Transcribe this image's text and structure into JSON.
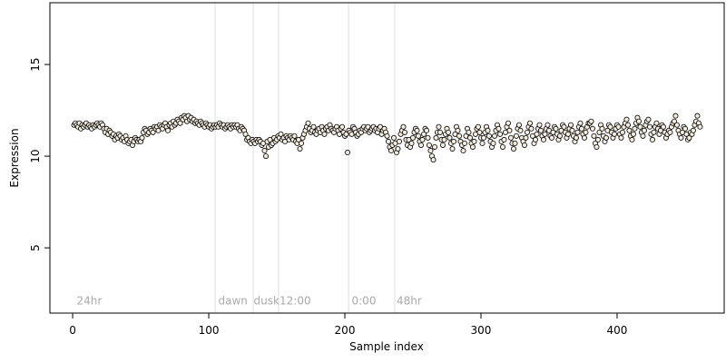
{
  "chart_data": {
    "type": "scatter",
    "xlabel": "Sample index",
    "ylabel": "Expression",
    "xlim": [
      -16.7,
      478.7
    ],
    "ylim": [
      1.44,
      18.37
    ],
    "xticks": [
      0,
      100,
      200,
      300,
      400
    ],
    "yticks": [
      5,
      10,
      15
    ],
    "grid": false,
    "vlines": [
      104.7,
      132.7,
      151.3,
      202.7,
      236.7
    ],
    "vline_color": "#dddddd",
    "annotations": [
      {
        "text": "24hr",
        "x": 3,
        "y": 1.9
      },
      {
        "text": "dawn",
        "x": 107,
        "y": 1.9
      },
      {
        "text": "dusk",
        "x": 133,
        "y": 1.9
      },
      {
        "text": "12:00",
        "x": 152,
        "y": 1.9
      },
      {
        "text": "0:00",
        "x": 205,
        "y": 1.9
      },
      {
        "text": "48hr",
        "x": 238,
        "y": 1.9
      }
    ],
    "series": [
      {
        "color": "#f3ecdf",
        "stroke": "#000000",
        "x": [
          1,
          2,
          3,
          4,
          5,
          6,
          7,
          8,
          9,
          10,
          11,
          12,
          13,
          14,
          15,
          16,
          17,
          18,
          19,
          20,
          21,
          22,
          23,
          24,
          25,
          26,
          27,
          28,
          29,
          30,
          31,
          32,
          33,
          34,
          35,
          36,
          37,
          38,
          39,
          40,
          41,
          42,
          43,
          44,
          45,
          46,
          47,
          48,
          49,
          50,
          51,
          52,
          53,
          54,
          55,
          56,
          57,
          58,
          59,
          60,
          61,
          62,
          63,
          64,
          65,
          66,
          67,
          68,
          69,
          70,
          71,
          72,
          73,
          74,
          75,
          76,
          77,
          78,
          79,
          80,
          81,
          82,
          83,
          84,
          85,
          86,
          87,
          88,
          89,
          90,
          91,
          92,
          93,
          94,
          95,
          96,
          97,
          98,
          99,
          100,
          101,
          102,
          103,
          104,
          105,
          106,
          107,
          108,
          109,
          110,
          111,
          112,
          113,
          114,
          115,
          116,
          117,
          118,
          119,
          120,
          121,
          122,
          123,
          124,
          125,
          126,
          127,
          128,
          129,
          130,
          131,
          132,
          133,
          134,
          135,
          136,
          137,
          138,
          139,
          140,
          141,
          142,
          143,
          144,
          145,
          146,
          147,
          148,
          149,
          150,
          151,
          152,
          153,
          154,
          155,
          156,
          157,
          158,
          159,
          160,
          161,
          162,
          163,
          164,
          165,
          166,
          167,
          168,
          169,
          170,
          171,
          172,
          173,
          174,
          175,
          176,
          177,
          178,
          179,
          180,
          181,
          182,
          183,
          184,
          185,
          186,
          187,
          188,
          189,
          190,
          191,
          192,
          193,
          194,
          195,
          196,
          197,
          198,
          199,
          200,
          201,
          202,
          203,
          204,
          205,
          206,
          207,
          208,
          209,
          210,
          211,
          212,
          213,
          214,
          215,
          216,
          217,
          218,
          219,
          220,
          221,
          222,
          223,
          224,
          225,
          226,
          227,
          228,
          229,
          230,
          231,
          232,
          233,
          234,
          235,
          236,
          237,
          238,
          239,
          240,
          241,
          242,
          243,
          244,
          245,
          246,
          247,
          248,
          249,
          250,
          251,
          252,
          253,
          254,
          255,
          256,
          257,
          258,
          259,
          260,
          261,
          262,
          263,
          264,
          265,
          266,
          267,
          268,
          269,
          270,
          271,
          272,
          273,
          274,
          275,
          276,
          277,
          278,
          279,
          280,
          281,
          282,
          283,
          284,
          285,
          286,
          287,
          288,
          289,
          290,
          291,
          292,
          293,
          294,
          295,
          296,
          297,
          298,
          299,
          300,
          301,
          302,
          303,
          304,
          305,
          306,
          307,
          308,
          309,
          310,
          311,
          312,
          313,
          314,
          315,
          316,
          317,
          318,
          319,
          320,
          321,
          322,
          323,
          324,
          325,
          326,
          327,
          328,
          329,
          330,
          331,
          332,
          333,
          334,
          335,
          336,
          337,
          338,
          339,
          340,
          341,
          342,
          343,
          344,
          345,
          346,
          347,
          348,
          349,
          350,
          351,
          352,
          353,
          354,
          355,
          356,
          357,
          358,
          359,
          360,
          361,
          362,
          363,
          364,
          365,
          366,
          367,
          368,
          369,
          370,
          371,
          372,
          373,
          374,
          375,
          376,
          377,
          378,
          379,
          380,
          381,
          382,
          383,
          384,
          385,
          386,
          387,
          388,
          389,
          390,
          391,
          392,
          393,
          394,
          395,
          396,
          397,
          398,
          399,
          400,
          401,
          402,
          403,
          404,
          405,
          406,
          407,
          408,
          409,
          410,
          411,
          412,
          413,
          414,
          415,
          416,
          417,
          418,
          419,
          420,
          421,
          422,
          423,
          424,
          425,
          426,
          427,
          428,
          429,
          430,
          431,
          432,
          433,
          434,
          435,
          436,
          437,
          438,
          439,
          440,
          441,
          442,
          443,
          444,
          445,
          446,
          447,
          448,
          449,
          450,
          451,
          452,
          453,
          454,
          455,
          456,
          457,
          458,
          459,
          460,
          461
        ],
        "values": [
          11.7,
          11.8,
          11.7,
          11.6,
          11.8,
          11.5,
          11.7,
          11.6,
          11.7,
          11.8,
          11.6,
          11.7,
          11.6,
          11.5,
          11.7,
          11.6,
          11.7,
          11.8,
          11.7,
          11.6,
          11.8,
          11.7,
          11.5,
          11.3,
          11.5,
          11.2,
          11.4,
          11.3,
          11.1,
          11.2,
          10.9,
          11.1,
          11.0,
          11.2,
          11.1,
          10.9,
          11.0,
          10.8,
          11.1,
          10.9,
          10.7,
          10.8,
          10.9,
          10.6,
          10.8,
          11.0,
          10.9,
          10.8,
          10.9,
          10.8,
          11.0,
          11.3,
          11.5,
          11.4,
          11.2,
          11.3,
          11.5,
          11.4,
          11.3,
          11.6,
          11.5,
          11.6,
          11.4,
          11.7,
          11.6,
          11.5,
          11.7,
          11.8,
          11.6,
          11.4,
          11.7,
          11.8,
          11.6,
          11.9,
          11.7,
          11.8,
          12.0,
          11.9,
          11.8,
          12.1,
          12.0,
          12.2,
          12.1,
          11.9,
          12.2,
          12.0,
          12.1,
          11.9,
          12.0,
          11.8,
          11.9,
          11.8,
          11.7,
          11.9,
          11.8,
          11.7,
          11.6,
          11.8,
          11.7,
          11.6,
          11.7,
          11.5,
          11.6,
          11.7,
          11.6,
          11.7,
          11.6,
          11.8,
          11.7,
          11.6,
          11.7,
          11.5,
          11.6,
          11.7,
          11.6,
          11.5,
          11.7,
          11.6,
          11.7,
          11.6,
          11.7,
          11.5,
          11.4,
          11.6,
          11.5,
          11.4,
          11.2,
          10.9,
          11.0,
          10.8,
          10.7,
          10.9,
          10.8,
          10.7,
          10.9,
          10.8,
          10.9,
          10.8,
          10.6,
          10.7,
          10.3,
          10.0,
          10.8,
          10.5,
          10.9,
          10.6,
          10.7,
          11.0,
          10.8,
          10.9,
          11.1,
          11.0,
          11.2,
          10.9,
          11.0,
          10.8,
          11.1,
          11.0,
          10.9,
          11.1,
          11.0,
          10.9,
          11.1,
          10.8,
          10.7,
          10.9,
          10.4,
          10.7,
          11.0,
          11.2,
          11.4,
          11.6,
          11.8,
          11.5,
          11.3,
          11.4,
          11.6,
          11.3,
          11.2,
          11.4,
          11.5,
          11.3,
          11.6,
          11.4,
          11.2,
          11.5,
          11.6,
          11.4,
          11.7,
          11.5,
          11.4,
          11.3,
          11.5,
          11.6,
          11.4,
          11.2,
          11.5,
          11.6,
          11.3,
          11.1,
          11.2,
          10.2,
          11.4,
          11.3,
          11.2,
          11.6,
          11.5,
          11.3,
          11.1,
          11.2,
          11.4,
          11.3,
          11.5,
          11.6,
          11.4,
          11.5,
          11.6,
          11.3,
          11.4,
          11.5,
          11.6,
          11.4,
          11.5,
          11.3,
          11.5,
          11.6,
          11.2,
          11.4,
          11.5,
          11.3,
          11.1,
          10.8,
          10.5,
          10.3,
          10.6,
          11.0,
          10.7,
          10.2,
          10.4,
          10.8,
          11.2,
          11.4,
          11.6,
          11.3,
          10.9,
          10.6,
          10.9,
          10.5,
          10.7,
          11.0,
          11.3,
          11.5,
          11.4,
          11.1,
          10.8,
          10.6,
          10.9,
          11.2,
          11.5,
          11.4,
          11.0,
          10.6,
          10.3,
          10.0,
          9.8,
          10.5,
          11.0,
          11.3,
          11.6,
          11.3,
          10.9,
          10.6,
          10.9,
          11.2,
          11.5,
          11.3,
          11.0,
          10.7,
          10.4,
          10.8,
          11.2,
          11.6,
          11.4,
          11.1,
          10.8,
          10.6,
          10.3,
          10.7,
          11.1,
          11.5,
          11.3,
          11.0,
          10.7,
          10.5,
          10.8,
          11.2,
          11.5,
          11.6,
          11.3,
          11.0,
          10.7,
          11.0,
          11.3,
          11.6,
          11.4,
          11.1,
          10.8,
          10.5,
          10.7,
          11.1,
          11.4,
          11.7,
          11.5,
          11.2,
          10.8,
          10.5,
          10.9,
          11.3,
          11.6,
          11.8,
          11.4,
          11.0,
          10.7,
          10.4,
          10.7,
          11.1,
          11.5,
          11.7,
          11.4,
          11.0,
          10.8,
          10.6,
          11.0,
          11.3,
          11.6,
          11.8,
          11.5,
          11.1,
          10.7,
          10.9,
          11.2,
          11.5,
          11.7,
          11.4,
          11.1,
          10.9,
          11.2,
          11.5,
          11.7,
          11.4,
          11.1,
          11.0,
          11.3,
          11.6,
          11.5,
          11.2,
          10.9,
          11.1,
          11.4,
          11.7,
          11.6,
          11.3,
          11.0,
          11.2,
          11.5,
          11.7,
          11.4,
          11.1,
          10.8,
          11.0,
          11.3,
          11.6,
          11.8,
          11.5,
          11.2,
          11.0,
          11.3,
          11.6,
          11.8,
          11.8,
          11.9,
          11.5,
          11.1,
          10.7,
          10.5,
          10.9,
          11.3,
          11.7,
          11.5,
          11.1,
          10.8,
          11.0,
          11.4,
          11.7,
          11.6,
          11.3,
          11.0,
          11.2,
          11.5,
          11.7,
          11.6,
          11.2,
          11.0,
          11.3,
          11.6,
          11.8,
          12.0,
          11.7,
          11.4,
          11.1,
          10.9,
          11.2,
          11.5,
          11.8,
          12.1,
          11.9,
          11.6,
          11.3,
          11.1,
          11.4,
          11.7,
          11.9,
          12.0,
          11.6,
          11.2,
          10.9,
          11.3,
          11.6,
          11.8,
          11.5,
          11.2,
          11.4,
          11.7,
          11.6,
          11.3,
          11.0,
          11.2,
          11.4,
          11.3,
          11.6,
          11.8,
          11.9,
          12.2,
          11.7,
          11.4,
          11.2,
          11.0,
          11.3,
          11.6,
          11.5,
          11.2,
          10.9,
          11.0,
          11.3,
          11.2,
          11.4,
          11.7,
          11.9,
          12.2,
          11.8,
          11.6
        ]
      }
    ]
  }
}
